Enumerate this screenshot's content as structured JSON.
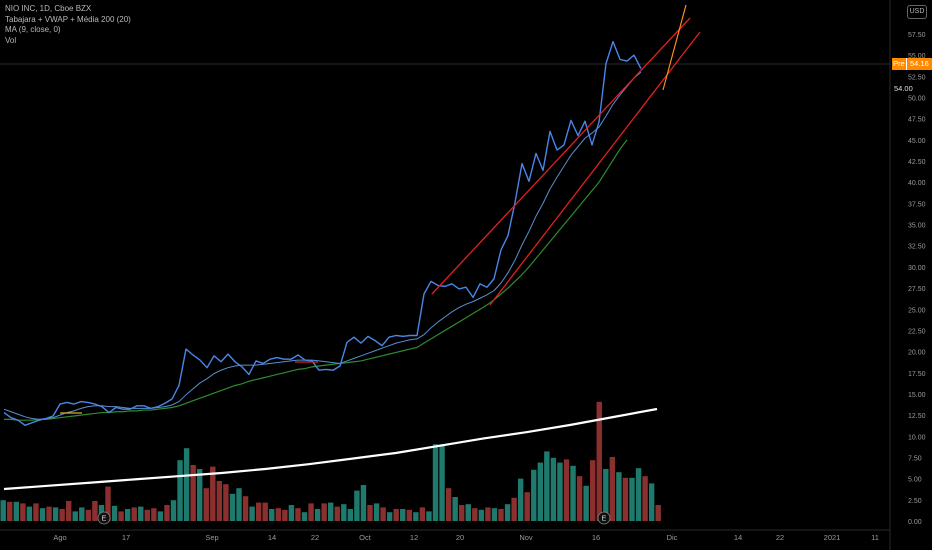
{
  "legend": {
    "symbol": "NIO INC, 1D, Cboe BZX",
    "indicator1": "Tabajara + VWAP + Média 200 (20)",
    "indicator2": "MA (9, close, 0)",
    "indicator3": "Vol"
  },
  "currency": "USD",
  "price_tag": {
    "prefix": "Pre",
    "value": "54.16"
  },
  "level_label": "54.00",
  "colors": {
    "price": "#4a86e8",
    "ma_fast": "#5a8fd0",
    "ma_slow": "#2e8b2e",
    "channel": "#e02020",
    "projection": "#ff8c1a",
    "vol_up": "#1f7a6e",
    "vol_down": "#8b2f2f",
    "vol_ma": "#ffffff"
  },
  "chart_data": {
    "type": "line",
    "title": "",
    "y_ticks": [
      "57.50",
      "55.00",
      "52.50",
      "50.00",
      "47.50",
      "45.00",
      "42.50",
      "40.00",
      "37.50",
      "35.00",
      "32.50",
      "30.00",
      "27.50",
      "25.00",
      "22.50",
      "20.00",
      "17.50",
      "15.00",
      "12.50",
      "10.00",
      "7.50",
      "5.00",
      "2.50",
      "0.00"
    ],
    "x_ticks": [
      "Ago",
      "17",
      "Sep",
      "14",
      "22",
      "Oct",
      "12",
      "20",
      "Nov",
      "16",
      "Dic",
      "14",
      "22",
      "2021",
      "11"
    ],
    "price": [
      12.8,
      12.2,
      11.9,
      11.3,
      11.6,
      11.9,
      12.1,
      12.4,
      13.8,
      14.0,
      13.8,
      14.1,
      14.0,
      13.8,
      13.5,
      12.8,
      13.4,
      13.2,
      13.2,
      13.6,
      13.6,
      13.3,
      13.5,
      13.9,
      14.4,
      16.0,
      20.3,
      19.6,
      19.0,
      18.1,
      19.5,
      18.8,
      19.7,
      18.8,
      18.2,
      17.3,
      18.9,
      18.6,
      19.1,
      19.3,
      19.1,
      19.1,
      19.6,
      19.0,
      18.9,
      17.8,
      17.9,
      17.8,
      18.3,
      21.1,
      21.7,
      21.0,
      21.8,
      21.3,
      20.7,
      21.7,
      21.9,
      21.8,
      21.9,
      21.9,
      26.8,
      28.3,
      27.8,
      27.7,
      28.0,
      27.4,
      27.6,
      26.4,
      28.0,
      27.6,
      28.6,
      32.0,
      33.7,
      37.6,
      42.2,
      40.1,
      43.4,
      41.4,
      46.0,
      43.8,
      44.4,
      47.3,
      45.5,
      47.2,
      44.4,
      47.1,
      54.0,
      56.6,
      54.5,
      54.3,
      55.0,
      53.4
    ],
    "ma_fast": [
      13.2,
      12.9,
      12.6,
      12.3,
      12.1,
      12.0,
      12.1,
      12.2,
      12.5,
      12.8,
      13.0,
      13.3,
      13.5,
      13.6,
      13.6,
      13.5,
      13.5,
      13.4,
      13.3,
      13.3,
      13.3,
      13.3,
      13.4,
      13.5,
      13.7,
      14.1,
      14.9,
      15.6,
      16.3,
      16.8,
      17.4,
      17.8,
      18.1,
      18.3,
      18.4,
      18.4,
      18.4,
      18.5,
      18.6,
      18.7,
      18.8,
      18.9,
      19.0,
      19.0,
      19.0,
      18.9,
      18.8,
      18.7,
      18.6,
      18.9,
      19.2,
      19.5,
      19.8,
      20.1,
      20.4,
      20.7,
      21.0,
      21.2,
      21.4,
      21.5,
      22.0,
      22.8,
      23.5,
      24.1,
      24.7,
      25.2,
      25.6,
      25.9,
      26.3,
      26.7,
      27.2,
      28.1,
      29.3,
      30.8,
      32.6,
      34.2,
      36.0,
      37.5,
      39.2,
      40.6,
      41.9,
      43.2,
      44.2,
      45.2,
      45.8,
      46.5,
      47.8,
      49.2,
      50.3,
      51.3,
      52.3,
      53.0
    ],
    "ma_slow": [
      12.0,
      12.0,
      11.9,
      11.9,
      11.9,
      12.0,
      12.0,
      12.1,
      12.2,
      12.3,
      12.4,
      12.5,
      12.6,
      12.7,
      12.8,
      12.8,
      12.9,
      12.9,
      13.0,
      13.0,
      13.1,
      13.1,
      13.2,
      13.3,
      13.4,
      13.6,
      13.9,
      14.2,
      14.5,
      14.8,
      15.1,
      15.4,
      15.7,
      16.0,
      16.2,
      16.5,
      16.7,
      16.9,
      17.1,
      17.3,
      17.5,
      17.7,
      17.9,
      18.0,
      18.2,
      18.3,
      18.4,
      18.5,
      18.6,
      18.7,
      18.8,
      18.9,
      19.1,
      19.3,
      19.5,
      19.7,
      19.9,
      20.1,
      20.3,
      20.5,
      21.0,
      21.5,
      22.0,
      22.5,
      23.0,
      23.5,
      24.0,
      24.5,
      25.0,
      25.5,
      26.1,
      26.8,
      27.5,
      28.3,
      29.1,
      30.0,
      31.0,
      32.0,
      33.0,
      34.0,
      35.0,
      36.0,
      37.0,
      38.0,
      39.0,
      40.0,
      41.3,
      42.6,
      43.9,
      45.0
    ],
    "volume": [
      2.6,
      2.4,
      2.4,
      2.2,
      1.8,
      2.2,
      1.6,
      1.8,
      1.7,
      1.5,
      2.5,
      1.2,
      1.7,
      1.4,
      2.5,
      2.0,
      4.3,
      1.9,
      1.2,
      1.5,
      1.7,
      1.8,
      1.4,
      1.6,
      1.2,
      2.0,
      2.6,
      7.6,
      9.1,
      7.0,
      6.5,
      4.1,
      6.8,
      5.0,
      4.6,
      3.4,
      4.1,
      3.1,
      1.8,
      2.3,
      2.3,
      1.5,
      1.6,
      1.4,
      2.0,
      1.6,
      1.1,
      2.2,
      1.5,
      2.2,
      2.3,
      1.8,
      2.1,
      1.5,
      3.8,
      4.5,
      2.0,
      2.2,
      1.7,
      1.1,
      1.5,
      1.5,
      1.4,
      1.1,
      1.7,
      1.2,
      9.6,
      9.6,
      4.1,
      3.0,
      2.0,
      2.1,
      1.6,
      1.4,
      1.7,
      1.6,
      1.5,
      2.1,
      2.9,
      5.3,
      3.6,
      6.4,
      7.3,
      8.7,
      7.9,
      7.3,
      7.7,
      6.9,
      5.6,
      4.4,
      7.6,
      14.9,
      6.5,
      8.0,
      6.1,
      5.4,
      5.4,
      6.6,
      5.6,
      4.7,
      2.0
    ],
    "volume_up": [
      true,
      false,
      true,
      false,
      true,
      false,
      true,
      false,
      true,
      false,
      false,
      true,
      true,
      false,
      false,
      true,
      false,
      true,
      false,
      true,
      false,
      true,
      false,
      false,
      true,
      false,
      true,
      true,
      true,
      false,
      true,
      false,
      false,
      false,
      false,
      true,
      true,
      false,
      true,
      false,
      false,
      true,
      false,
      false,
      true,
      false,
      true,
      false,
      true,
      false,
      true,
      false,
      true,
      true,
      true,
      true,
      false,
      true,
      false,
      true,
      false,
      true,
      false,
      true,
      false,
      true,
      true,
      true,
      false,
      true,
      false,
      true,
      false,
      true,
      false,
      true,
      false,
      true,
      false,
      true,
      false,
      true,
      true,
      true,
      true,
      true,
      false,
      true,
      false,
      true,
      false,
      false,
      true,
      false,
      true,
      false,
      true,
      true,
      false,
      true,
      false
    ],
    "volume_ma": [
      4.0,
      4.4,
      4.8,
      5.2,
      5.6,
      6.0,
      6.5,
      7.1,
      7.8,
      8.5,
      9.4,
      10.3,
      11.1,
      12.0,
      13.0,
      14.0
    ]
  }
}
